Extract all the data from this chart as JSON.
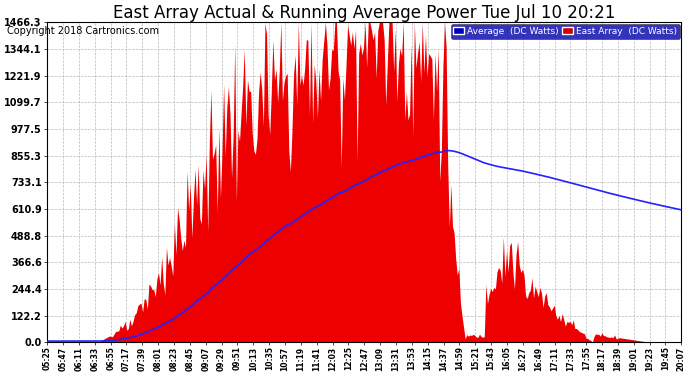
{
  "title": "East Array Actual & Running Average Power Tue Jul 10 20:21",
  "copyright": "Copyright 2018 Cartronics.com",
  "legend_labels": [
    "Average  (DC Watts)",
    "East Array  (DC Watts)"
  ],
  "legend_colors_bg": [
    "#0000bb",
    "#cc0000"
  ],
  "ylim": [
    0,
    1466.3
  ],
  "yticks": [
    0.0,
    122.2,
    244.4,
    366.6,
    488.8,
    610.9,
    733.1,
    855.3,
    977.5,
    1099.7,
    1221.9,
    1344.1,
    1466.3
  ],
  "xtick_labels": [
    "05:25",
    "05:47",
    "06:11",
    "06:33",
    "06:55",
    "07:17",
    "07:39",
    "08:01",
    "08:23",
    "08:45",
    "09:07",
    "09:29",
    "09:51",
    "10:13",
    "10:35",
    "10:57",
    "11:19",
    "11:41",
    "12:03",
    "12:25",
    "12:47",
    "13:09",
    "13:31",
    "13:53",
    "14:15",
    "14:37",
    "14:59",
    "15:21",
    "15:43",
    "16:05",
    "16:27",
    "16:49",
    "17:11",
    "17:33",
    "17:55",
    "18:17",
    "18:39",
    "19:01",
    "19:23",
    "19:45",
    "20:07"
  ],
  "background_color": "#ffffff",
  "plot_bg_color": "#ffffff",
  "grid_color": "#aaaaaa",
  "area_color": "#ee0000",
  "line_color": "#2222ff",
  "fig_bg": "#ffffff",
  "title_fontsize": 12,
  "copyright_fontsize": 7,
  "ytick_fontsize": 7,
  "xtick_fontsize": 5.5
}
